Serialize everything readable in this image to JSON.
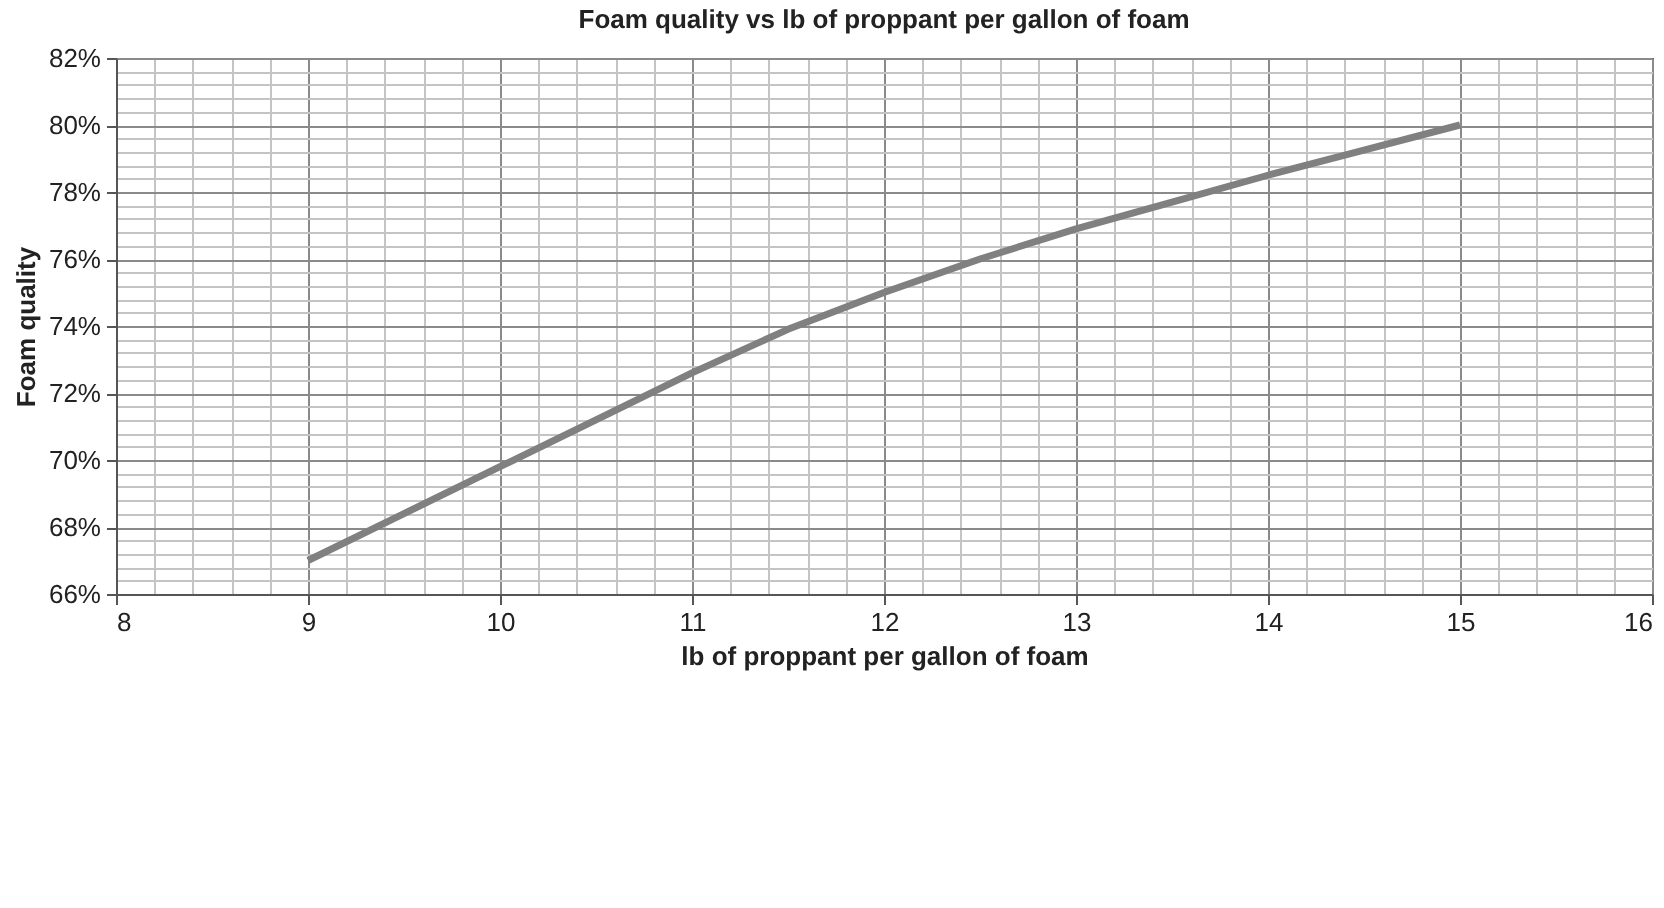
{
  "chart_data": {
    "type": "line",
    "title": "Foam quality vs lb of proppant per gallon of foam",
    "xlabel": "lb of proppant per gallon of foam",
    "ylabel": "Foam quality",
    "x": [
      9,
      9.5,
      10,
      10.5,
      11,
      11.5,
      12,
      12.5,
      13,
      13.5,
      14,
      14.5,
      15
    ],
    "series": [
      {
        "color": "#808080",
        "values": [
          67,
          68.4,
          69.8,
          71.2,
          72.6,
          73.9,
          75.0,
          76.0,
          76.9,
          77.7,
          78.5,
          79.25,
          80
        ]
      }
    ],
    "xlim": [
      8,
      16
    ],
    "xticks": [
      8,
      {
        "value": 8.2,
        "label": null
      },
      {
        "value": 8.4,
        "label": null
      },
      {
        "value": 8.6,
        "label": null
      },
      {
        "value": 8.8,
        "label": null
      },
      9,
      {
        "value": 9.2,
        "label": null
      },
      {
        "value": 9.4,
        "label": null
      },
      {
        "value": 9.6,
        "label": null
      },
      {
        "value": 9.8,
        "label": null
      },
      10,
      {
        "value": 10.2,
        "label": null
      },
      {
        "value": 10.4,
        "label": null
      },
      {
        "value": 10.6,
        "label": null
      },
      {
        "value": 10.8,
        "label": null
      },
      11,
      {
        "value": 11.2,
        "label": null
      },
      {
        "value": 11.4,
        "label": null
      },
      {
        "value": 11.6,
        "label": null
      },
      {
        "value": 11.8,
        "label": null
      },
      12,
      {
        "value": 12.2,
        "label": null
      },
      {
        "value": 12.4,
        "label": null
      },
      {
        "value": 12.6,
        "label": null
      },
      {
        "value": 12.8,
        "label": null
      },
      13,
      {
        "value": 13.2,
        "label": null
      },
      {
        "value": 13.4,
        "label": null
      },
      {
        "value": 13.6,
        "label": null
      },
      {
        "value": 13.8,
        "label": null
      },
      14,
      {
        "value": 14.2,
        "label": null
      },
      {
        "value": 14.4,
        "label": null
      },
      {
        "value": 14.6,
        "label": null
      },
      {
        "value": 14.8,
        "label": null
      },
      15,
      {
        "value": 15.2,
        "label": null
      },
      {
        "value": 15.4,
        "label": null
      },
      {
        "value": 15.6,
        "label": null
      },
      {
        "value": 15.8,
        "label": null
      },
      16
    ],
    "ylim": [
      66,
      82
    ],
    "yticks": [
      {
        "value": 66,
        "label": "66%"
      },
      {
        "value": 66.4,
        "label": null
      },
      {
        "value": 66.8,
        "label": null
      },
      {
        "value": 67.2,
        "label": null
      },
      {
        "value": 67.6,
        "label": null
      },
      {
        "value": 68,
        "label": "68%"
      },
      {
        "value": 68.4,
        "label": null
      },
      {
        "value": 68.8,
        "label": null
      },
      {
        "value": 69.2,
        "label": null
      },
      {
        "value": 69.6,
        "label": null
      },
      {
        "value": 70,
        "label": "70%"
      },
      {
        "value": 70.4,
        "label": null
      },
      {
        "value": 70.8,
        "label": null
      },
      {
        "value": 71.2,
        "label": null
      },
      {
        "value": 71.6,
        "label": null
      },
      {
        "value": 72,
        "label": "72%"
      },
      {
        "value": 72.4,
        "label": null
      },
      {
        "value": 72.8,
        "label": null
      },
      {
        "value": 73.2,
        "label": null
      },
      {
        "value": 73.6,
        "label": null
      },
      {
        "value": 74,
        "label": "74%"
      },
      {
        "value": 74.4,
        "label": null
      },
      {
        "value": 74.8,
        "label": null
      },
      {
        "value": 75.2,
        "label": null
      },
      {
        "value": 75.6,
        "label": null
      },
      {
        "value": 76,
        "label": "76%"
      },
      {
        "value": 76.4,
        "label": null
      },
      {
        "value": 76.8,
        "label": null
      },
      {
        "value": 77.2,
        "label": null
      },
      {
        "value": 77.6,
        "label": null
      },
      {
        "value": 78,
        "label": "78%"
      },
      {
        "value": 78.4,
        "label": null
      },
      {
        "value": 78.8,
        "label": null
      },
      {
        "value": 79.2,
        "label": null
      },
      {
        "value": 79.6,
        "label": null
      },
      {
        "value": 80,
        "label": "80%"
      },
      {
        "value": 80.4,
        "label": null
      },
      {
        "value": 80.8,
        "label": null
      },
      {
        "value": 81.2,
        "label": null
      },
      {
        "value": 81.6,
        "label": null
      },
      {
        "value": 82,
        "label": "82%"
      }
    ],
    "grid": true,
    "marker": "none",
    "line_style": "solid"
  }
}
